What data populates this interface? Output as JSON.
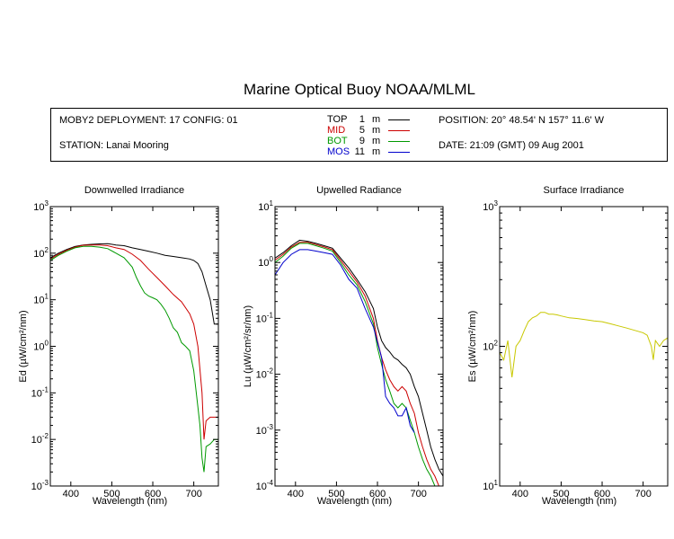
{
  "title": "Marine Optical Buoy NOAA/MLML",
  "info": {
    "deployment": "MOBY2 DEPLOYMENT: 17 CONFIG: 01",
    "station": "STATION: Lanai Mooring",
    "position": "POSITION: 20° 48.54' N   157° 11.6' W",
    "date": "DATE: 21:09 (GMT) 09 Aug 2001"
  },
  "legend": [
    {
      "name": "TOP",
      "depth": "1",
      "unit": "m",
      "color": "#000000"
    },
    {
      "name": "MID",
      "depth": "5",
      "unit": "m",
      "color": "#cc0000"
    },
    {
      "name": "BOT",
      "depth": "9",
      "unit": "m",
      "color": "#009900"
    },
    {
      "name": "MOS",
      "depth": "11",
      "unit": "m",
      "color": "#0000cc"
    }
  ],
  "chart_data": [
    {
      "type": "line",
      "title": "Downwelled Irradiance",
      "xlabel": "Wavelength (nm)",
      "ylabel": "Ed  (µW/cm²/nm)",
      "yscale": "log",
      "xlim": [
        350,
        760
      ],
      "ylim": [
        0.001,
        1000
      ],
      "x_ticks": [
        400,
        500,
        600,
        700
      ],
      "y_ticks": [
        {
          "value": 0.001,
          "base": "10",
          "exp": "-3"
        },
        {
          "value": 0.01,
          "base": "10",
          "exp": "-2"
        },
        {
          "value": 0.1,
          "base": "10",
          "exp": "-1"
        },
        {
          "value": 1,
          "base": "10",
          "exp": "0"
        },
        {
          "value": 10,
          "base": "10",
          "exp": "1"
        },
        {
          "value": 100,
          "base": "10",
          "exp": "2"
        },
        {
          "value": 1000,
          "base": "10",
          "exp": "3"
        }
      ],
      "series": [
        {
          "color": "#000000",
          "x": [
            350,
            370,
            390,
            410,
            430,
            450,
            470,
            490,
            510,
            530,
            550,
            570,
            590,
            610,
            630,
            650,
            670,
            690,
            700,
            710,
            720,
            730,
            740,
            750,
            760
          ],
          "y": [
            80,
            100,
            120,
            140,
            150,
            155,
            158,
            160,
            150,
            145,
            130,
            120,
            110,
            100,
            90,
            85,
            80,
            75,
            70,
            60,
            40,
            20,
            10,
            3,
            3
          ]
        },
        {
          "color": "#cc0000",
          "x": [
            350,
            370,
            390,
            410,
            430,
            450,
            470,
            490,
            510,
            530,
            550,
            570,
            590,
            610,
            630,
            650,
            670,
            690,
            700,
            710,
            720,
            725,
            730,
            740,
            750,
            760
          ],
          "y": [
            75,
            95,
            115,
            135,
            148,
            150,
            150,
            145,
            130,
            120,
            95,
            70,
            45,
            30,
            20,
            13,
            9,
            5,
            3,
            1,
            0.1,
            0.01,
            0.025,
            0.03,
            0.03,
            0.03
          ]
        },
        {
          "color": "#009900",
          "x": [
            350,
            370,
            390,
            410,
            430,
            450,
            470,
            490,
            510,
            530,
            550,
            560,
            570,
            580,
            590,
            600,
            610,
            620,
            630,
            640,
            650,
            660,
            670,
            680,
            690,
            700,
            710,
            715,
            720,
            725,
            730,
            740,
            750,
            760
          ],
          "y": [
            70,
            90,
            110,
            130,
            140,
            140,
            135,
            125,
            100,
            80,
            50,
            30,
            20,
            14,
            12,
            11,
            10,
            8,
            6,
            4,
            2.5,
            2,
            1.2,
            1,
            0.8,
            0.3,
            0.05,
            0.02,
            0.004,
            0.002,
            0.007,
            0.008,
            0.01,
            0.01
          ]
        }
      ]
    },
    {
      "type": "line",
      "title": "Upwelled Radiance",
      "xlabel": "Wavelength (nm)",
      "ylabel": "Lu  (µW/cm²/sr/nm)",
      "yscale": "log",
      "xlim": [
        350,
        760
      ],
      "ylim": [
        0.0001,
        10
      ],
      "x_ticks": [
        400,
        500,
        600,
        700
      ],
      "y_ticks": [
        {
          "value": 0.0001,
          "base": "10",
          "exp": "-4"
        },
        {
          "value": 0.001,
          "base": "10",
          "exp": "-3"
        },
        {
          "value": 0.01,
          "base": "10",
          "exp": "-2"
        },
        {
          "value": 0.1,
          "base": "10",
          "exp": "-1"
        },
        {
          "value": 1,
          "base": "10",
          "exp": "0"
        },
        {
          "value": 10,
          "base": "10",
          "exp": "1"
        }
      ],
      "series": [
        {
          "color": "#000000",
          "x": [
            350,
            370,
            390,
            410,
            430,
            450,
            470,
            490,
            510,
            530,
            550,
            570,
            590,
            600,
            610,
            620,
            630,
            640,
            650,
            660,
            670,
            680,
            690,
            700,
            710,
            720,
            730,
            740,
            750,
            760
          ],
          "y": [
            1.2,
            1.5,
            2,
            2.5,
            2.4,
            2.2,
            2,
            1.8,
            1.2,
            0.8,
            0.5,
            0.3,
            0.15,
            0.07,
            0.04,
            0.03,
            0.025,
            0.02,
            0.018,
            0.015,
            0.013,
            0.01,
            0.006,
            0.004,
            0.002,
            0.001,
            0.0005,
            0.0003,
            0.0002,
            0.00015
          ]
        },
        {
          "color": "#cc0000",
          "x": [
            350,
            370,
            390,
            410,
            430,
            450,
            470,
            490,
            510,
            530,
            550,
            570,
            590,
            600,
            610,
            620,
            630,
            640,
            650,
            660,
            670,
            680,
            690,
            700,
            710,
            720,
            730,
            740,
            750,
            760
          ],
          "y": [
            1.1,
            1.4,
            1.9,
            2.3,
            2.3,
            2.1,
            1.9,
            1.7,
            1.1,
            0.7,
            0.45,
            0.25,
            0.1,
            0.04,
            0.02,
            0.012,
            0.008,
            0.006,
            0.005,
            0.006,
            0.005,
            0.003,
            0.002,
            0.0009,
            0.0005,
            0.0003,
            0.0002,
            0.00015,
            0.0001,
            0.0001
          ]
        },
        {
          "color": "#009900",
          "x": [
            350,
            370,
            390,
            410,
            430,
            450,
            470,
            490,
            510,
            530,
            550,
            570,
            590,
            600,
            610,
            620,
            630,
            640,
            650,
            660,
            670,
            680,
            690,
            700,
            710,
            720,
            730,
            740,
            750,
            760
          ],
          "y": [
            1,
            1.3,
            1.8,
            2.2,
            2.2,
            2,
            1.8,
            1.6,
            1,
            0.6,
            0.4,
            0.2,
            0.08,
            0.03,
            0.015,
            0.008,
            0.005,
            0.003,
            0.0025,
            0.003,
            0.0025,
            0.0015,
            0.0009,
            0.0005,
            0.0003,
            0.0002,
            0.00015,
            0.0001,
            0.0001,
            0.0001
          ]
        },
        {
          "color": "#0000cc",
          "x": [
            350,
            370,
            390,
            410,
            430,
            450,
            470,
            490,
            510,
            530,
            550,
            570,
            590,
            610,
            620,
            630,
            640,
            650,
            660,
            670,
            680,
            690
          ],
          "y": [
            0.6,
            1,
            1.4,
            1.7,
            1.7,
            1.6,
            1.5,
            1.4,
            0.9,
            0.5,
            0.35,
            0.15,
            0.07,
            0.02,
            0.004,
            0.003,
            0.0025,
            0.0018,
            0.0018,
            0.0025,
            0.0012,
            0.0009
          ]
        }
      ]
    },
    {
      "type": "line",
      "title": "Surface Irradiance",
      "xlabel": "Wavelength (nm)",
      "ylabel": "Es  (µW/cm²/nm)",
      "yscale": "log",
      "xlim": [
        350,
        760
      ],
      "ylim": [
        10,
        1000
      ],
      "x_ticks": [
        400,
        500,
        600,
        700
      ],
      "y_ticks": [
        {
          "value": 10,
          "base": "10",
          "exp": "1"
        },
        {
          "value": 100,
          "base": "10",
          "exp": "2"
        },
        {
          "value": 1000,
          "base": "10",
          "exp": "3"
        }
      ],
      "series": [
        {
          "color": "#c8c800",
          "x": [
            350,
            360,
            370,
            380,
            390,
            400,
            410,
            420,
            430,
            440,
            450,
            460,
            470,
            480,
            490,
            500,
            520,
            540,
            560,
            580,
            600,
            620,
            640,
            660,
            680,
            700,
            710,
            720,
            725,
            730,
            740,
            750,
            760
          ],
          "y": [
            90,
            80,
            110,
            60,
            100,
            110,
            130,
            150,
            160,
            165,
            175,
            175,
            170,
            170,
            168,
            165,
            160,
            158,
            155,
            152,
            150,
            145,
            140,
            135,
            130,
            125,
            120,
            100,
            80,
            110,
            100,
            110,
            115
          ]
        }
      ]
    }
  ]
}
